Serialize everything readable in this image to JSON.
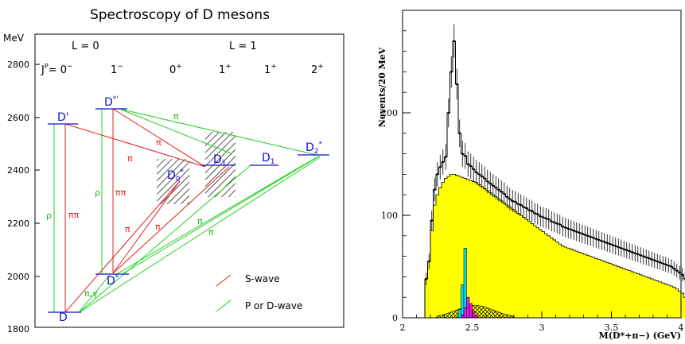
{
  "left": {
    "title": "Spectroscopy of D mesons",
    "mev_label": "MeV",
    "y_ticks": [
      "1800",
      "2000",
      "2200",
      "2400",
      "2600",
      "2800"
    ],
    "l0": "L = 0",
    "l1": "L = 1",
    "jp_prefix": "J",
    "jp_sup": "P",
    "jp_first": "= 0",
    "jp_first_sup": "−",
    "jp_1minus": "1",
    "jp_1minus_sup": "−",
    "jp_0plus": "0",
    "jp_0plus_sup": "+",
    "jp_1plus_a": "1",
    "jp_1plus_a_sup": "+",
    "jp_1plus_b": "1",
    "jp_1plus_b_sup": "+",
    "jp_2plus": "2",
    "jp_2plus_sup": "+",
    "states": {
      "D": "D",
      "Dstar": "D",
      "Dstar_sup": "*",
      "Dprime": "D'",
      "Dstarprime": "D",
      "Dstarprime_sup": "*'",
      "D0": "D",
      "D0_sub": "0",
      "D0_sup": "*",
      "D1a": "D",
      "D1a_sub": "1",
      "D1b": "D",
      "D1b_sub": "1",
      "D2": "D",
      "D2_sub": "2",
      "D2_sup": "*"
    },
    "transition_labels": {
      "rho1": "ρ",
      "pipi1": "ππ",
      "rho2": "ρ",
      "pipi2": "ππ",
      "pi_a": "π",
      "pi_b": "π",
      "pi_c": "π",
      "pi_d": "π",
      "pi_e": "π",
      "pi_f": "π",
      "pi_g": "π",
      "pigamma": "π,γ"
    },
    "legend": {
      "swave": "S-wave",
      "pdwave": "P or D-wave"
    },
    "colors": {
      "swave": "#e02020",
      "pdwave": "#20d020",
      "state": "#1010d0"
    }
  },
  "chart_data": {
    "type": "histogram",
    "title": "",
    "xlabel": "M(D*+π−) (GeV)",
    "ylabel": "Nevents/20 MeV",
    "xlim": [
      2.0,
      4.0
    ],
    "ylim": [
      0,
      300
    ],
    "x_ticks": [
      "2",
      "2.5",
      "3",
      "3.5",
      "4"
    ],
    "y_ticks": [
      "0",
      "100",
      "200"
    ],
    "bin_width": 0.02,
    "background_start": 2.16,
    "data": [
      0,
      0,
      0,
      0,
      0,
      0,
      0,
      0,
      38,
      55,
      95,
      125,
      140,
      147,
      152,
      157,
      200,
      240,
      270,
      228,
      180,
      160,
      158,
      150,
      148,
      145,
      142,
      140,
      138,
      136,
      133,
      131,
      129,
      127,
      125,
      123,
      121,
      118,
      116,
      114,
      113,
      111,
      110,
      108,
      107,
      105,
      104,
      102,
      101,
      99,
      98,
      97,
      96,
      94,
      93,
      92,
      91,
      89,
      88,
      87,
      86,
      85,
      84,
      83,
      82,
      81,
      80,
      79,
      78,
      77,
      76,
      75,
      74,
      73,
      72,
      71,
      70,
      69,
      68,
      67,
      66,
      65,
      64,
      63,
      62,
      61,
      60,
      59,
      58,
      57,
      56,
      55,
      54,
      53,
      52,
      51,
      50,
      48,
      46,
      44,
      42,
      38
    ],
    "bkg": [
      0,
      0,
      0,
      0,
      0,
      0,
      0,
      0,
      38,
      55,
      85,
      110,
      120,
      127,
      132,
      136,
      138,
      140,
      140,
      139,
      138,
      137,
      136,
      135,
      134,
      133,
      132,
      130,
      128,
      126,
      124,
      122,
      120,
      118,
      116,
      114,
      112,
      110,
      108,
      106,
      104,
      102,
      100,
      98,
      96,
      94,
      92,
      90,
      88,
      86,
      84,
      82,
      80,
      78,
      76,
      74,
      72,
      70,
      69,
      68,
      67,
      66,
      65,
      64,
      63,
      62,
      61,
      60,
      59,
      58,
      57,
      56,
      55,
      54,
      53,
      52,
      51,
      50,
      49,
      48,
      47,
      46,
      45,
      44,
      43,
      42,
      41,
      40,
      39,
      38,
      37,
      36,
      35,
      34,
      33,
      32,
      31,
      30,
      28,
      26,
      24,
      20
    ],
    "cyan_peak": {
      "bins": [
        2.4,
        2.42,
        2.44,
        2.46
      ],
      "values": [
        8,
        32,
        68,
        10
      ]
    },
    "magenta_peak": {
      "bins": [
        2.42,
        2.44,
        2.46,
        2.48,
        2.5,
        2.52
      ],
      "values": [
        3,
        10,
        20,
        14,
        6,
        2
      ]
    },
    "hatched_peak": {
      "center": 2.52,
      "width": 0.55,
      "height": 12
    }
  }
}
